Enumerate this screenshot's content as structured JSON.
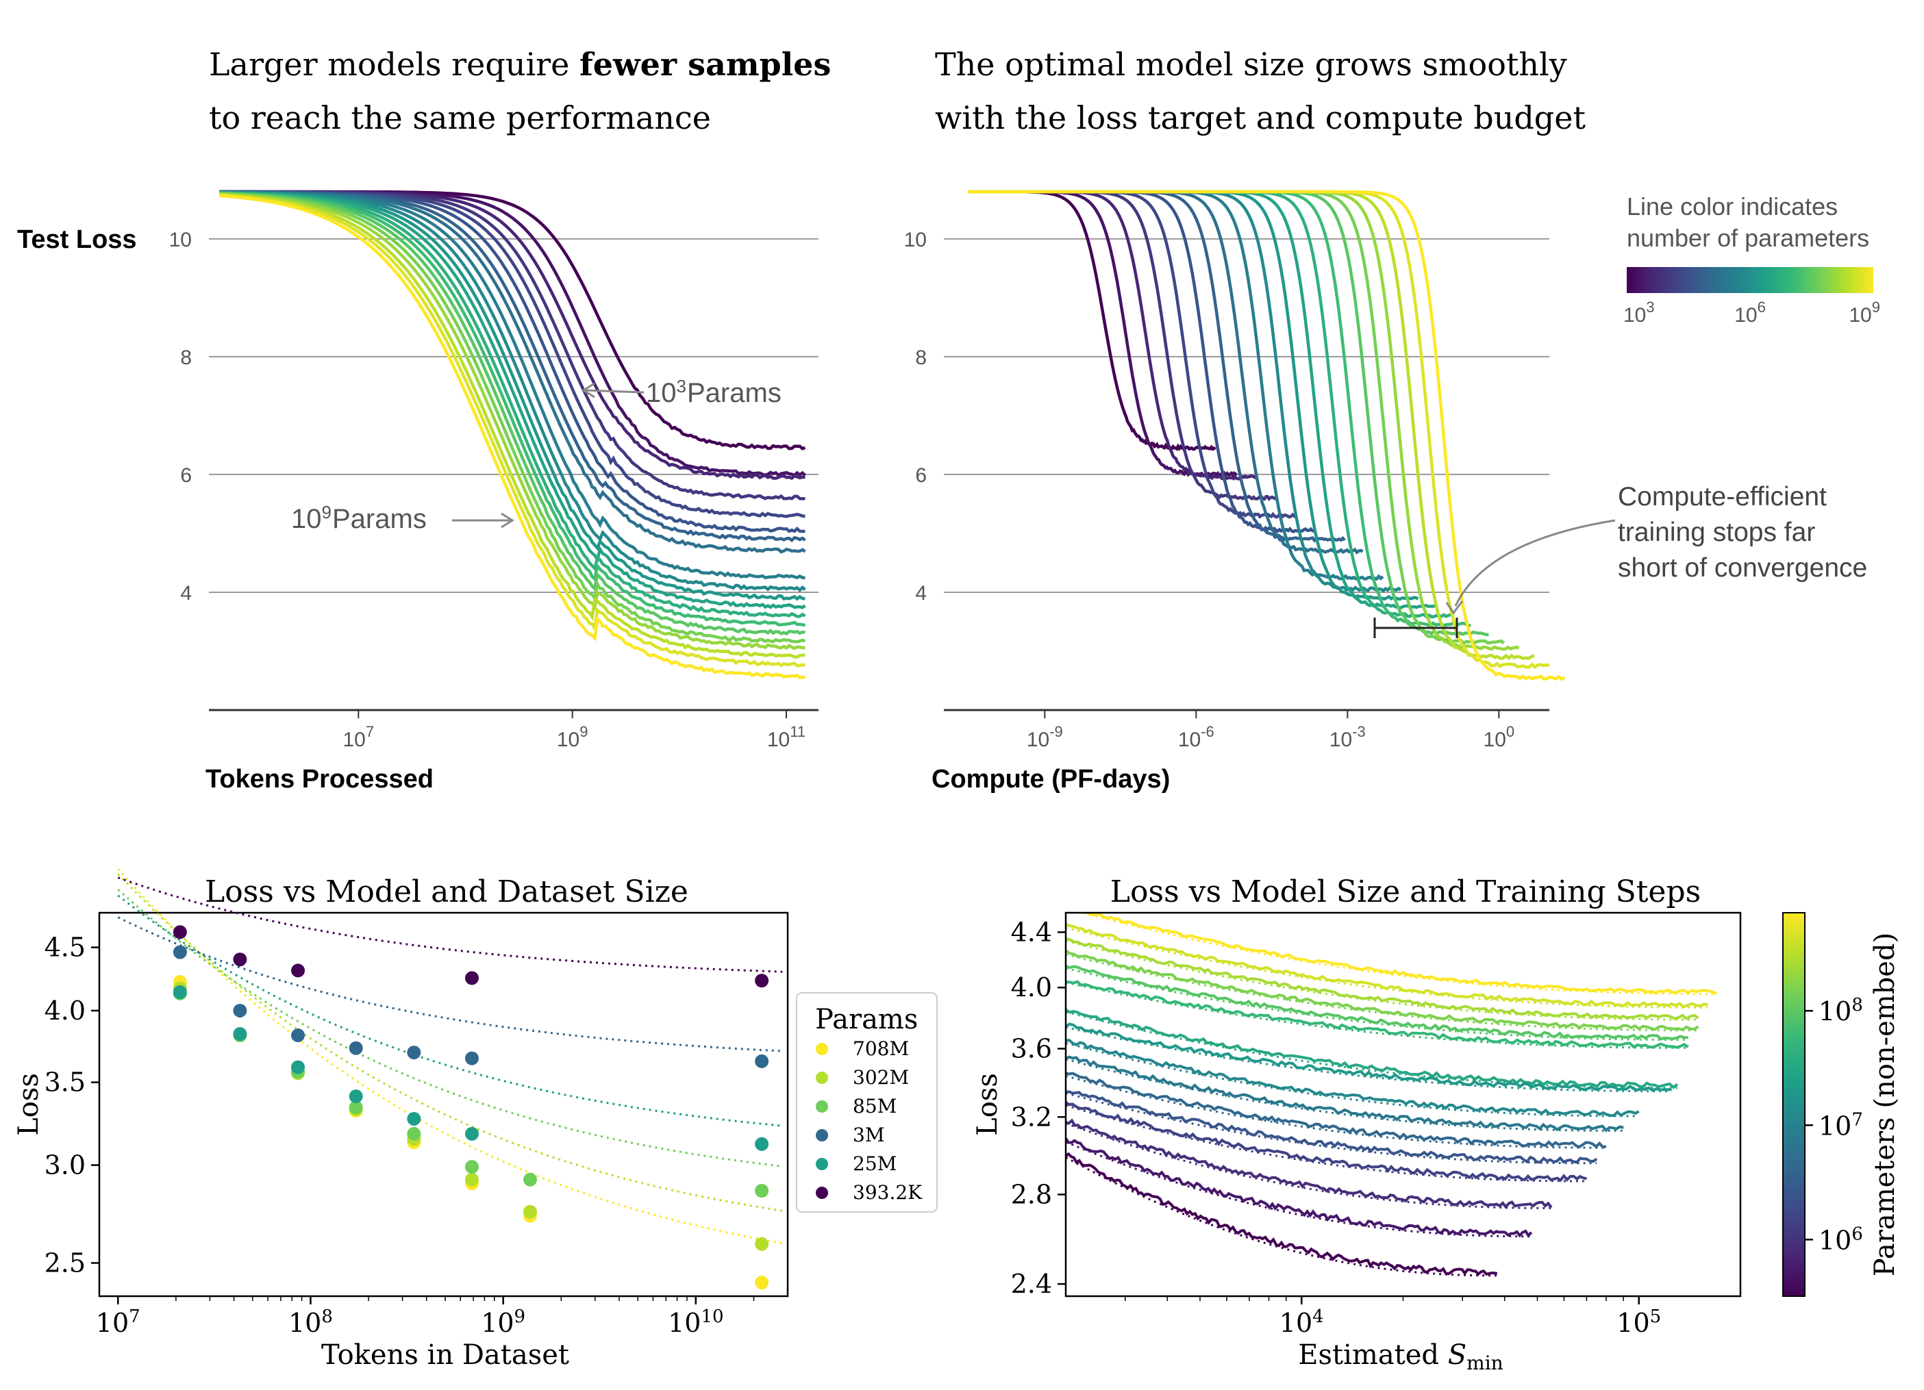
{
  "colors": {
    "viridis": [
      "#440154",
      "#482878",
      "#3e4989",
      "#31688e",
      "#26828e",
      "#1f9e89",
      "#35b779",
      "#6ece58",
      "#b5de2b",
      "#fde725"
    ],
    "gridline": "#999999",
    "annotation": "#666666"
  },
  "chart_data": [
    {
      "type": "line",
      "title_line1_pre": "Larger models require ",
      "title_line1_bold": "fewer samples",
      "title_line2": "to reach the same performance",
      "ylabel": "Test Loss",
      "xlabel": "Tokens Processed",
      "xscale": "log",
      "xlim": [
        400000,
        200000000000
      ],
      "ylim": [
        2,
        10.8
      ],
      "yticks": [
        {
          "v": 4,
          "label": "4"
        },
        {
          "v": 6,
          "label": "6"
        },
        {
          "v": 8,
          "label": "8"
        },
        {
          "v": 10,
          "label": "10"
        }
      ],
      "xticks": [
        {
          "v": 10000000,
          "base": "10",
          "exp": "7"
        },
        {
          "v": 1000000000,
          "base": "10",
          "exp": "9"
        },
        {
          "v": 100000000000,
          "base": "10",
          "exp": "11"
        }
      ],
      "grid": "horizontal",
      "series_count": 20,
      "start_loss": 10.8,
      "x_start": 500000,
      "x_end": 150000000000,
      "final_losses": [
        6.45,
        6.0,
        5.95,
        5.6,
        5.3,
        5.05,
        4.9,
        4.7,
        4.25,
        4.05,
        3.9,
        3.75,
        3.6,
        3.45,
        3.3,
        3.15,
        3.05,
        2.9,
        2.75,
        2.55
      ],
      "drop_midpoints": [
        1800000000,
        1300000000,
        1000000000,
        850000000,
        750000000,
        650000000,
        550000000,
        500000000,
        450000000,
        400000000,
        360000000,
        330000000,
        300000000,
        280000000,
        260000000,
        240000000,
        220000000,
        200000000,
        190000000,
        180000000
      ],
      "annotations": [
        {
          "base": "10",
          "exp": "3",
          "text": " Params",
          "target": "1e3"
        },
        {
          "base": "10",
          "exp": "9",
          "text": " Params",
          "target": "1e9"
        }
      ]
    },
    {
      "type": "line",
      "title_line1": "The optimal model size grows smoothly",
      "title_line2": "with the loss target and compute budget",
      "xlabel": "Compute (PF-days)",
      "xscale": "log",
      "xlim": [
        1e-11,
        10
      ],
      "ylim": [
        2,
        10.8
      ],
      "yticks": [
        {
          "v": 4,
          "label": "4"
        },
        {
          "v": 6,
          "label": "6"
        },
        {
          "v": 8,
          "label": "8"
        },
        {
          "v": 10,
          "label": "10"
        }
      ],
      "xticks": [
        {
          "v": 1e-09,
          "base": "10",
          "exp": "-9"
        },
        {
          "v": 1e-06,
          "base": "10",
          "exp": "-6"
        },
        {
          "v": 0.001,
          "base": "10",
          "exp": "-3"
        },
        {
          "v": 1,
          "base": "10",
          "exp": "0"
        }
      ],
      "grid": "horizontal",
      "series_count": 20,
      "start_loss": 10.8,
      "x_start": 3e-11,
      "drop_midpoints": [
        1.5e-08,
        4e-08,
        1e-07,
        2.5e-07,
        6e-07,
        1.5e-06,
        3.5e-06,
        8e-06,
        2e-05,
        4.5e-05,
        0.0001,
        0.00022,
        0.0005,
        0.0011,
        0.0025,
        0.005,
        0.01,
        0.02,
        0.04,
        0.08
      ],
      "final_losses": [
        6.45,
        6.0,
        5.95,
        5.6,
        5.3,
        5.05,
        4.9,
        4.7,
        4.25,
        4.05,
        3.9,
        3.75,
        3.6,
        3.45,
        3.3,
        3.15,
        3.05,
        2.9,
        2.75,
        2.55
      ],
      "colorbar": {
        "title_line1": "Line color indicates",
        "title_line2": "number of parameters",
        "ticks": [
          {
            "base": "10",
            "exp": "3"
          },
          {
            "base": "10",
            "exp": "6"
          },
          {
            "base": "10",
            "exp": "9"
          }
        ]
      },
      "annotation": {
        "line1": "Compute-efficient",
        "line2": "training stops far",
        "line3": "short of convergence"
      }
    },
    {
      "type": "scatter",
      "title": "Loss vs Model and Dataset Size",
      "xlabel": "Tokens in Dataset",
      "ylabel": "Loss",
      "xscale": "log",
      "yscale": "log",
      "xlim": [
        8000000,
        30000000000
      ],
      "ylim": [
        2.35,
        4.8
      ],
      "yticks": [
        {
          "v": 2.5,
          "label": "2.5"
        },
        {
          "v": 3.0,
          "label": "3.0"
        },
        {
          "v": 3.5,
          "label": "3.5"
        },
        {
          "v": 4.0,
          "label": "4.0"
        },
        {
          "v": 4.5,
          "label": "4.5"
        }
      ],
      "xticks": [
        {
          "v": 10000000,
          "base": "10",
          "exp": "7"
        },
        {
          "v": 100000000,
          "base": "10",
          "exp": "8"
        },
        {
          "v": 1000000000,
          "base": "10",
          "exp": "9"
        },
        {
          "v": 10000000000,
          "base": "10",
          "exp": "10"
        }
      ],
      "legend_title": "Params",
      "legend_position": "right",
      "x": [
        21000000,
        43000000,
        86000000,
        172000000,
        344000000,
        688000000,
        1380000000,
        22000000000
      ],
      "series": [
        {
          "name": "708M",
          "color": "#fde725",
          "values": [
            4.22,
            null,
            3.57,
            3.32,
            3.13,
            2.9,
            2.73,
            2.41
          ],
          "fit_inf": 2.37,
          "fit_a": 8.3
        },
        {
          "name": "302M",
          "color": "#b5de2b",
          "values": [
            4.17,
            null,
            3.56,
            3.33,
            3.15,
            2.92,
            2.75,
            2.59
          ],
          "fit_inf": 2.55,
          "fit_a": 8.0
        },
        {
          "name": "85M",
          "color": "#6ece58",
          "values": [
            4.13,
            3.82,
            3.57,
            3.34,
            3.18,
            2.99,
            2.92,
            2.86
          ],
          "fit_inf": 2.82,
          "fit_a": 7.4
        },
        {
          "name": "3M",
          "color": "#31688e",
          "values": [
            4.46,
            4.0,
            3.82,
            3.73,
            3.7,
            3.66,
            null,
            3.64
          ],
          "fit_inf": 3.62,
          "fit_a": 6.0
        },
        {
          "name": "25M",
          "color": "#1f9e89",
          "values": [
            4.14,
            3.83,
            3.6,
            3.41,
            3.27,
            3.18,
            null,
            3.12
          ],
          "fit_inf": 3.08,
          "fit_a": 7.0
        },
        {
          "name": "393.2K",
          "color": "#440154",
          "values": [
            4.63,
            4.4,
            4.31,
            null,
            null,
            4.25,
            null,
            4.23
          ],
          "fit_inf": 4.23,
          "fit_a": 6.1
        }
      ]
    },
    {
      "type": "line",
      "title": "Loss vs Model Size and Training Steps",
      "xlabel_pre": "Estimated ",
      "xlabel_var": "S",
      "xlabel_sub": "min",
      "ylabel": "Loss",
      "xscale": "log",
      "yscale": "log",
      "xlim": [
        2000,
        200000
      ],
      "ylim": [
        2.35,
        4.55
      ],
      "yticks": [
        {
          "v": 2.4,
          "label": "2.4"
        },
        {
          "v": 2.8,
          "label": "2.8"
        },
        {
          "v": 3.2,
          "label": "3.2"
        },
        {
          "v": 3.6,
          "label": "3.6"
        },
        {
          "v": 4.0,
          "label": "4.0"
        },
        {
          "v": 4.4,
          "label": "4.4"
        }
      ],
      "xticks": [
        {
          "v": 10000,
          "base": "10",
          "exp": "4"
        },
        {
          "v": 100000,
          "base": "10",
          "exp": "5"
        }
      ],
      "colorbar": {
        "label": "Parameters (non-embed)",
        "ticks": [
          {
            "v": 1000000,
            "base": "10",
            "exp": "6"
          },
          {
            "v": 10000000,
            "base": "10",
            "exp": "7"
          },
          {
            "v": 100000000,
            "base": "10",
            "exp": "8"
          }
        ],
        "range": [
          320000,
          720000000
        ]
      },
      "series": [
        {
          "start": 4.6,
          "end": 3.97,
          "x_end": 170000
        },
        {
          "start": 4.45,
          "end": 3.88,
          "x_end": 160000
        },
        {
          "start": 4.35,
          "end": 3.8,
          "x_end": 150000
        },
        {
          "start": 4.25,
          "end": 3.73,
          "x_end": 150000
        },
        {
          "start": 4.15,
          "end": 3.67,
          "x_end": 140000
        },
        {
          "start": 4.05,
          "end": 3.62,
          "x_end": 140000
        },
        {
          "start": 3.85,
          "end": 3.38,
          "x_end": 130000
        },
        {
          "start": 3.75,
          "end": 3.36,
          "x_end": 125000
        },
        {
          "start": 3.65,
          "end": 3.22,
          "x_end": 100000
        },
        {
          "start": 3.55,
          "end": 3.14,
          "x_end": 90000
        },
        {
          "start": 3.45,
          "end": 3.05,
          "x_end": 80000
        },
        {
          "start": 3.35,
          "end": 2.97,
          "x_end": 75000
        },
        {
          "start": 3.28,
          "end": 2.88,
          "x_end": 70000
        },
        {
          "start": 3.18,
          "end": 2.75,
          "x_end": 55000
        },
        {
          "start": 3.08,
          "end": 2.62,
          "x_end": 48000
        },
        {
          "start": 3.0,
          "end": 2.45,
          "x_end": 38000
        }
      ]
    }
  ]
}
